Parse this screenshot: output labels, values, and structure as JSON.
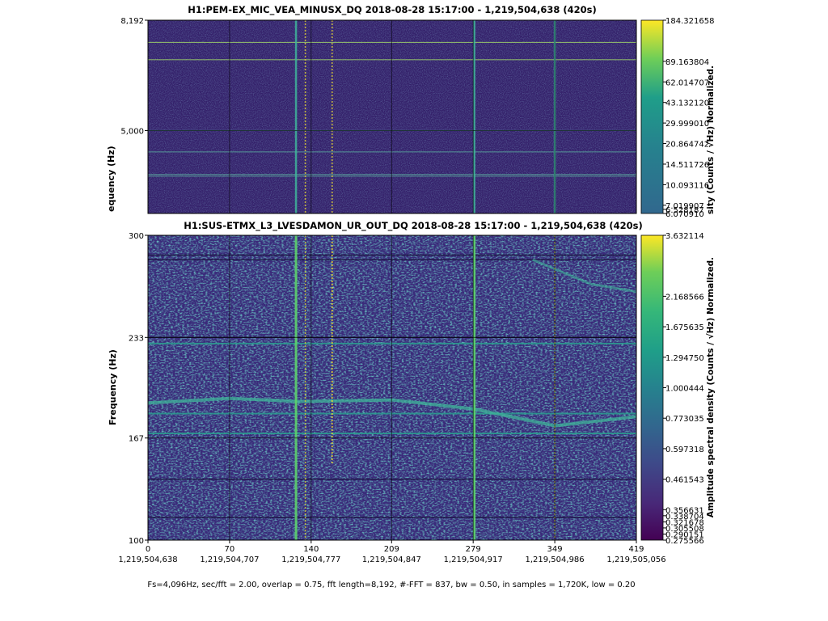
{
  "footer": "Fs=4,096Hz, sec/fft = 2.00, overlap = 0.75, fft length=8,192, #-FFT = 837, bw = 0.50, in samples = 1,720K, low = 0.20",
  "colors": {
    "bg_dark": "#35175a",
    "bg_mid": "#3b3a8c",
    "teal": "#2a9e8e",
    "bright": "#5dd36b",
    "yellow": "#fde725"
  },
  "chart_data": [
    {
      "type": "heatmap",
      "title": "H1:PEM-EX_MIC_VEA_MINUSX_DQ 2018-08-28 15:17:00 - 1,219,504,638 (420s)",
      "ylabel": "equency (Hz)",
      "yticks": [
        "8,192",
        "5,000"
      ],
      "ytick_values": [
        8192,
        5000
      ],
      "ylim": [
        2600,
        8192
      ],
      "xlim": [
        0,
        419
      ],
      "colorbar": {
        "label": "sity (Counts / √Hz) Normalized.",
        "range": [
          6.07091,
          184.321658
        ],
        "ticks": [
          "184.321658",
          "89.163804",
          "62.014707",
          "43.132120",
          "29.999010",
          "20.864742",
          "14.511726",
          "10.093116",
          "7.019907",
          "6.528187",
          "6.070910"
        ],
        "tick_values": [
          184.321658,
          89.163804,
          62.014707,
          43.13212,
          29.99901,
          20.864742,
          14.511726,
          10.093116,
          7.019907,
          6.528187,
          6.07091
        ]
      },
      "vertical_features_s": [
        127,
        135,
        158,
        280,
        349
      ],
      "horizontal_lines_hz": [
        7550,
        7050,
        5000,
        4380,
        3730,
        3680
      ]
    },
    {
      "type": "heatmap",
      "title": "H1:SUS-ETMX_L3_LVESDAMON_UR_OUT_DQ 2018-08-28 15:17:00 - 1,219,504,638 (420s)",
      "ylabel": "Frequency (Hz)",
      "yticks": [
        "300",
        "233",
        "167",
        "100"
      ],
      "ytick_values": [
        300,
        233,
        167,
        100
      ],
      "ylim": [
        100,
        300
      ],
      "xlim": [
        0,
        419
      ],
      "xticks": [
        "0",
        "70",
        "140",
        "209",
        "279",
        "349",
        "419"
      ],
      "xtick_values": [
        0,
        70,
        140,
        209,
        279,
        349,
        419
      ],
      "xticks_gps": [
        "1,219,504,638",
        "1,219,504,707",
        "1,219,504,777",
        "1,219,504,847",
        "1,219,504,917",
        "1,219,504,986",
        "1,219,505,056"
      ],
      "colorbar": {
        "label": "Amplitude spectral density (Counts / √Hz) Normalized.",
        "range": [
          0.275566,
          3.632114
        ],
        "ticks": [
          "3.632114",
          "2.168566",
          "1.675635",
          "1.294750",
          "1.000444",
          "0.773035",
          "0.597318",
          "0.461543",
          "0.356631",
          "0.338704",
          "0.321678",
          "0.305508",
          "0.290151",
          "0.275566"
        ],
        "tick_values": [
          3.632114,
          2.168566,
          1.675635,
          1.29475,
          1.000444,
          0.773035,
          0.597318,
          0.461543,
          0.356631,
          0.338704,
          0.321678,
          0.305508,
          0.290151,
          0.275566
        ]
      },
      "vertical_features_s": [
        127,
        135,
        158,
        280,
        349
      ],
      "horizontal_lines_hz": [
        287,
        284,
        233,
        229,
        183,
        170,
        140,
        115
      ],
      "wandering_line": {
        "x": [
          0,
          70,
          130,
          210,
          280,
          349,
          419
        ],
        "y": [
          190,
          193,
          191,
          192,
          186,
          175,
          181
        ]
      },
      "upper_wandering_line": {
        "x": [
          330,
          380,
          419
        ],
        "y": [
          284,
          268,
          263
        ]
      }
    }
  ]
}
